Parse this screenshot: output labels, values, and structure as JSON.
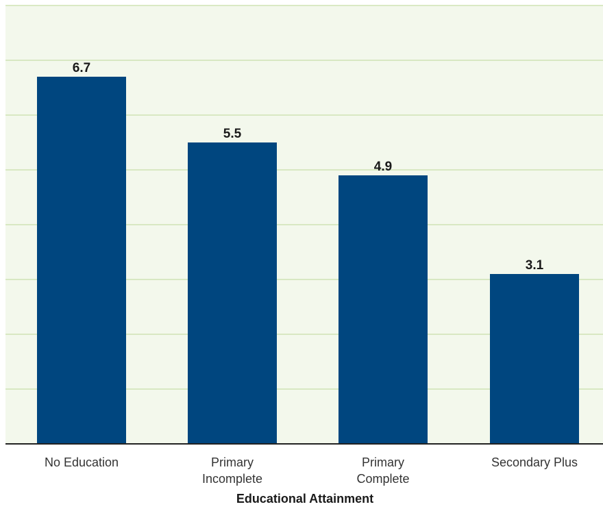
{
  "colors": {
    "plot_background": "#f3f8ec",
    "gridline": "#cfe3b4",
    "bar": "#00467f",
    "axis": "#222222"
  },
  "chart_data": {
    "type": "bar",
    "categories": [
      [
        "No Education"
      ],
      [
        "Primary",
        "Incomplete"
      ],
      [
        "Primary",
        "Complete"
      ],
      [
        "Secondary Plus"
      ]
    ],
    "values": [
      6.7,
      5.5,
      4.9,
      3.1
    ],
    "value_labels": [
      "6.7",
      "5.5",
      "4.9",
      "3.1"
    ],
    "xlabel": "Educational Attainment",
    "ylim": [
      0,
      8
    ],
    "grid": true,
    "gridlines": [
      1,
      2,
      3,
      4,
      5,
      6,
      7,
      8
    ]
  }
}
